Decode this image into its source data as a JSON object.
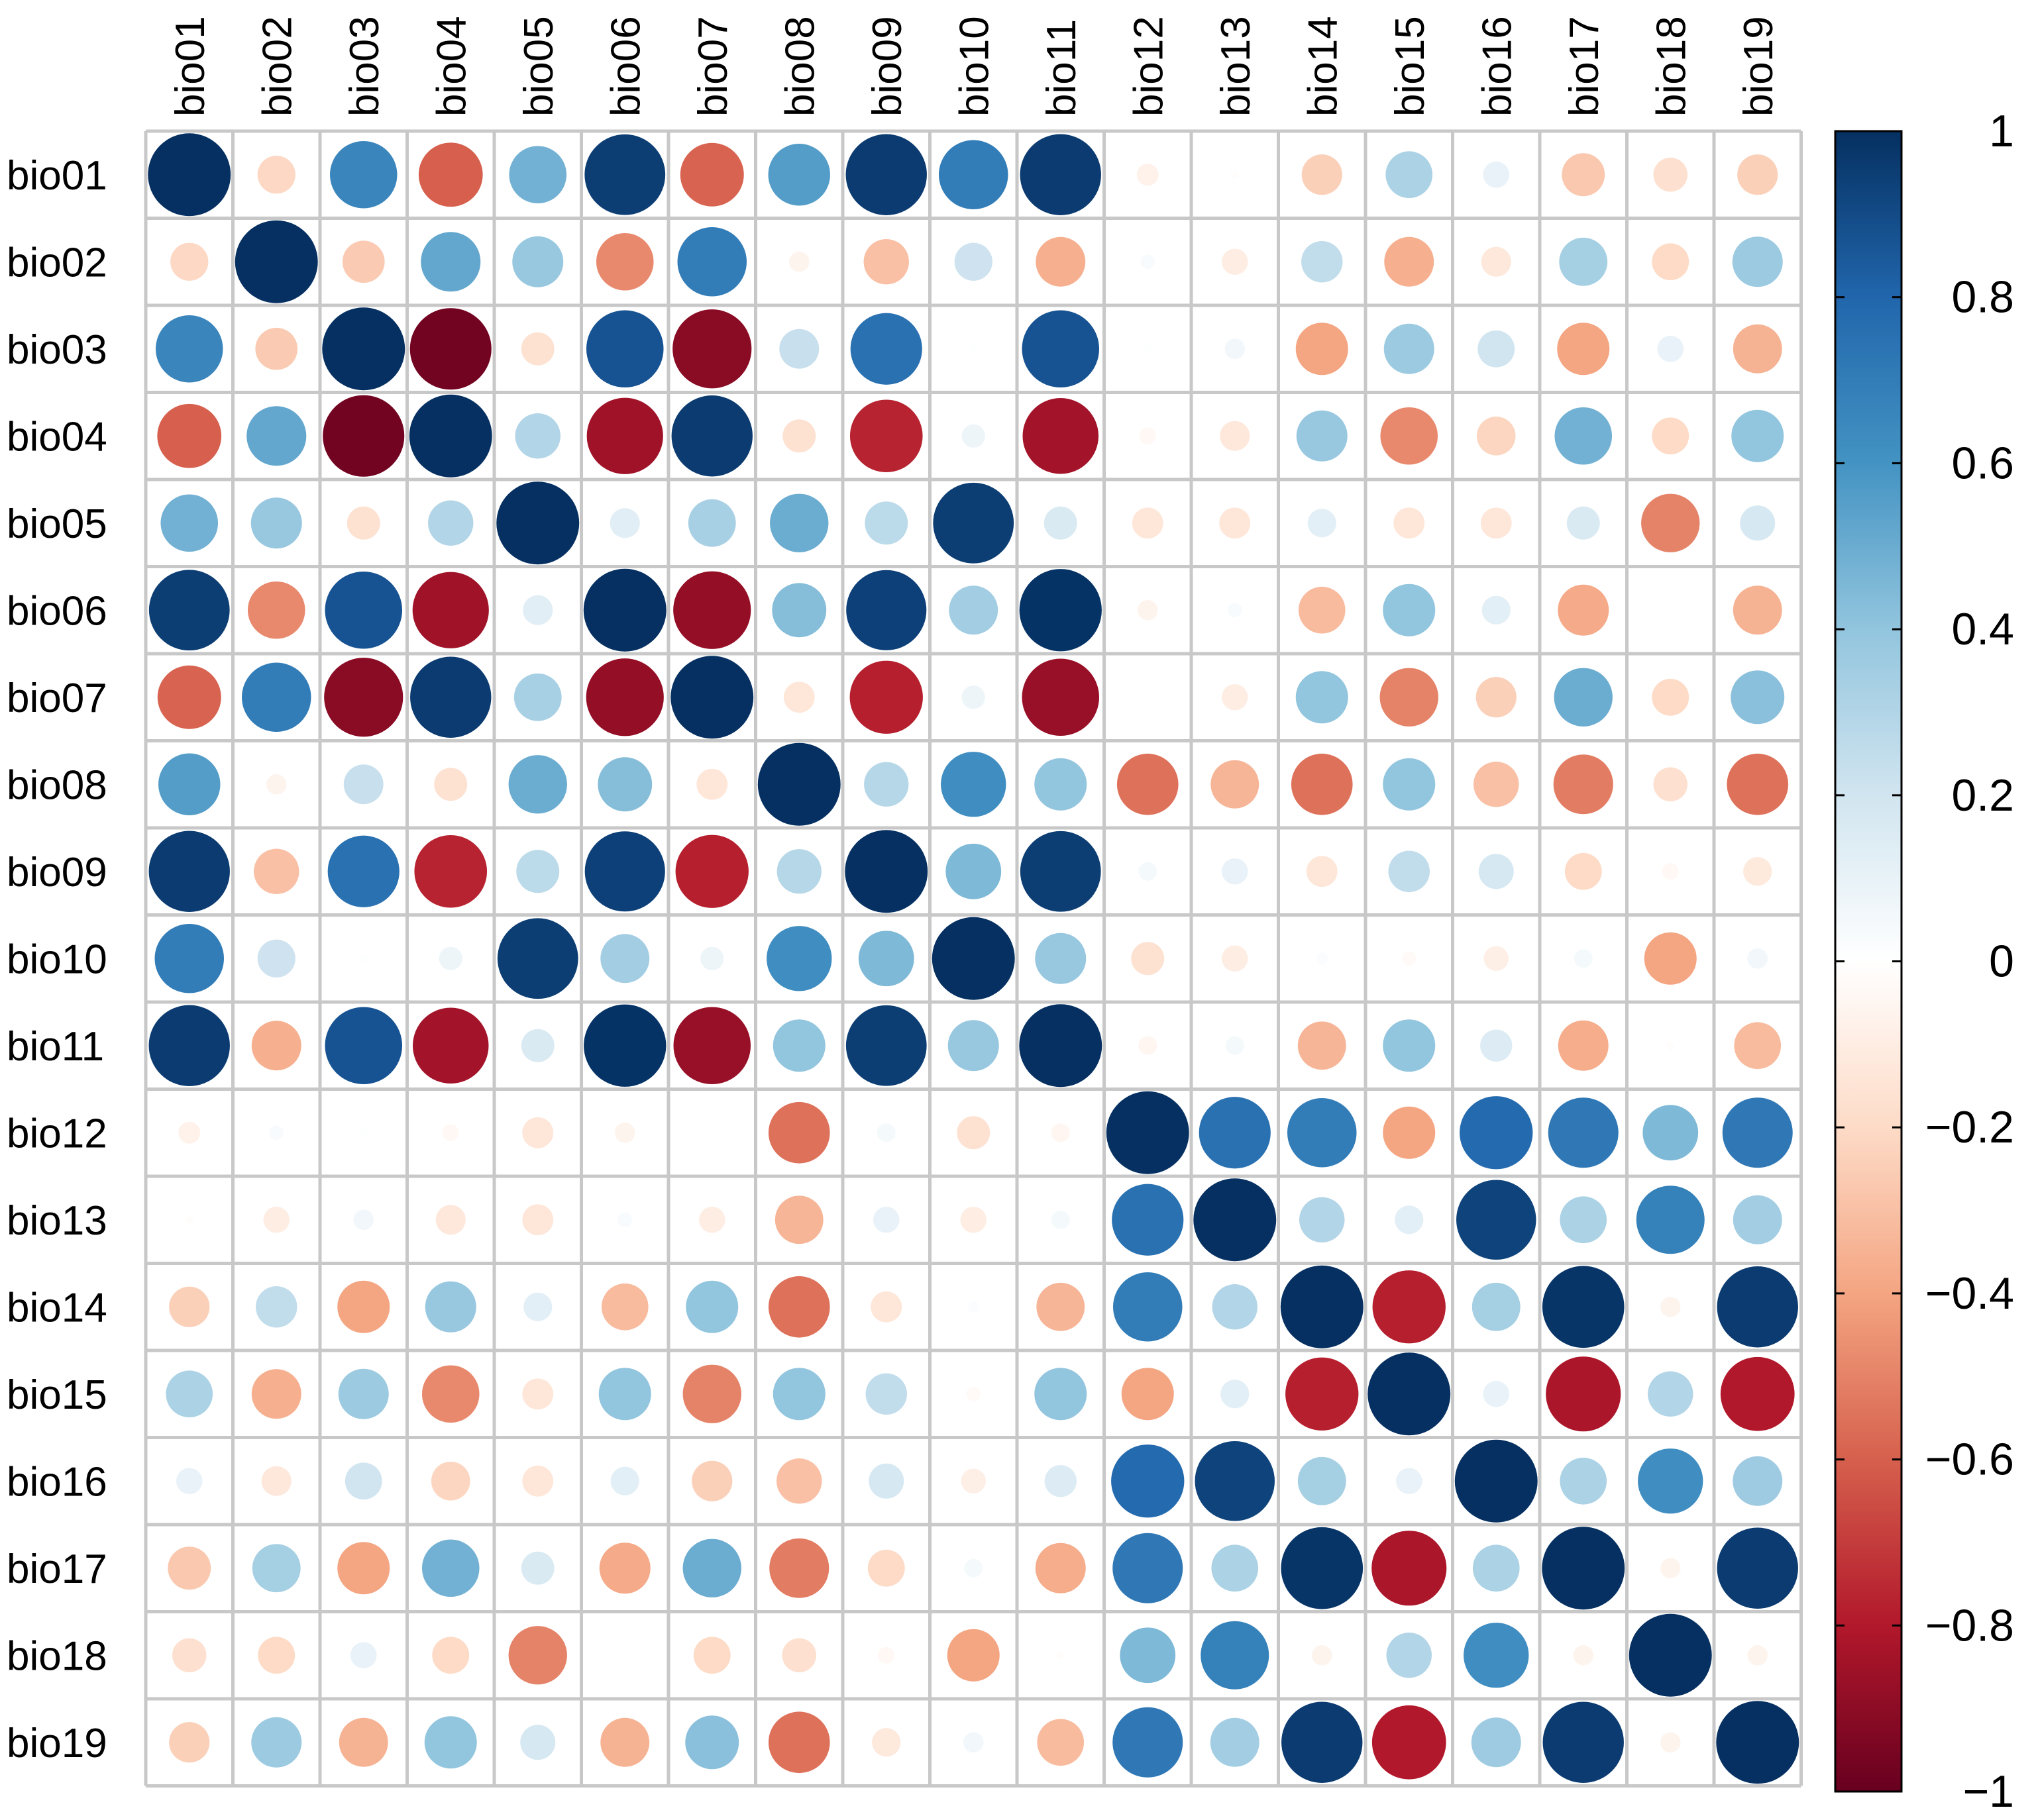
{
  "chart_data": {
    "type": "heatmap",
    "style": "corrplot-circle",
    "variables": [
      "bio01",
      "bio02",
      "bio03",
      "bio04",
      "bio05",
      "bio06",
      "bio07",
      "bio08",
      "bio09",
      "bio10",
      "bio11",
      "bio12",
      "bio13",
      "bio14",
      "bio15",
      "bio16",
      "bio17",
      "bio18",
      "bio19"
    ],
    "matrix": [
      [
        1.0,
        -0.21,
        0.66,
        -0.6,
        0.48,
        0.95,
        -0.59,
        0.56,
        0.96,
        0.7,
        0.96,
        -0.07,
        -0.01,
        -0.24,
        0.32,
        0.1,
        -0.27,
        -0.17,
        -0.24
      ],
      [
        -0.21,
        1.0,
        -0.26,
        0.52,
        0.38,
        -0.48,
        0.7,
        -0.06,
        -0.3,
        0.21,
        -0.36,
        0.03,
        -0.1,
        0.25,
        -0.36,
        -0.13,
        0.34,
        -0.2,
        0.37
      ],
      [
        0.66,
        -0.26,
        1.0,
        -0.97,
        -0.16,
        0.87,
        -0.91,
        0.23,
        0.75,
        0.01,
        0.87,
        0.01,
        0.06,
        -0.4,
        0.37,
        0.2,
        -0.4,
        0.1,
        -0.35
      ],
      [
        -0.6,
        0.52,
        -0.97,
        1.0,
        0.3,
        -0.85,
        0.96,
        -0.16,
        -0.77,
        0.08,
        -0.84,
        -0.04,
        -0.13,
        0.38,
        -0.48,
        -0.22,
        0.48,
        -0.2,
        0.4
      ],
      [
        0.48,
        0.38,
        -0.16,
        0.3,
        1.0,
        0.13,
        0.33,
        0.5,
        0.27,
        0.95,
        0.16,
        -0.14,
        -0.14,
        0.12,
        -0.14,
        -0.14,
        0.16,
        -0.5,
        0.18
      ],
      [
        0.95,
        -0.48,
        0.87,
        -0.85,
        0.13,
        1.0,
        -0.88,
        0.43,
        0.94,
        0.35,
        0.99,
        -0.06,
        0.03,
        -0.32,
        0.4,
        0.12,
        -0.38,
        0.0,
        -0.35
      ],
      [
        -0.59,
        0.7,
        -0.91,
        0.96,
        0.33,
        -0.88,
        1.0,
        -0.14,
        -0.78,
        0.08,
        -0.87,
        0.0,
        -0.1,
        0.4,
        -0.5,
        -0.24,
        0.5,
        -0.2,
        0.42
      ],
      [
        0.56,
        -0.06,
        0.23,
        -0.16,
        0.5,
        0.43,
        -0.14,
        1.0,
        0.29,
        0.62,
        0.4,
        -0.55,
        -0.34,
        -0.55,
        0.4,
        -0.3,
        -0.52,
        -0.17,
        -0.55
      ],
      [
        0.96,
        -0.3,
        0.75,
        -0.77,
        0.27,
        0.94,
        -0.78,
        0.29,
        1.0,
        0.45,
        0.95,
        0.05,
        0.1,
        -0.14,
        0.25,
        0.18,
        -0.2,
        -0.04,
        -0.12
      ],
      [
        0.7,
        0.21,
        0.01,
        0.08,
        0.95,
        0.35,
        0.08,
        0.62,
        0.45,
        1.0,
        0.38,
        -0.16,
        -0.1,
        0.02,
        -0.03,
        -0.09,
        0.05,
        -0.4,
        0.06
      ],
      [
        0.96,
        -0.36,
        0.87,
        -0.84,
        0.16,
        0.99,
        -0.87,
        0.4,
        0.95,
        0.38,
        1.0,
        -0.05,
        0.05,
        -0.34,
        0.4,
        0.15,
        -0.37,
        -0.01,
        -0.32
      ],
      [
        -0.07,
        0.03,
        0.01,
        -0.04,
        -0.14,
        -0.06,
        0.0,
        -0.55,
        0.05,
        -0.16,
        -0.05,
        1.0,
        0.75,
        0.7,
        -0.4,
        0.78,
        0.72,
        0.45,
        0.72
      ],
      [
        -0.01,
        -0.1,
        0.06,
        -0.13,
        -0.14,
        0.03,
        -0.1,
        -0.34,
        0.1,
        -0.1,
        0.05,
        0.75,
        1.0,
        0.3,
        0.12,
        0.93,
        0.32,
        0.68,
        0.35
      ],
      [
        -0.24,
        0.25,
        -0.4,
        0.38,
        0.12,
        -0.32,
        0.4,
        -0.55,
        -0.14,
        0.02,
        -0.34,
        0.7,
        0.3,
        1.0,
        -0.78,
        0.34,
        0.98,
        -0.06,
        0.96
      ],
      [
        0.32,
        -0.36,
        0.37,
        -0.48,
        -0.14,
        0.4,
        -0.5,
        0.4,
        0.25,
        -0.03,
        0.4,
        -0.4,
        0.12,
        -0.78,
        1.0,
        0.1,
        -0.82,
        0.3,
        -0.8
      ],
      [
        0.1,
        -0.13,
        0.2,
        -0.22,
        -0.14,
        0.12,
        -0.24,
        -0.3,
        0.18,
        -0.09,
        0.15,
        0.78,
        0.93,
        0.34,
        0.1,
        1.0,
        0.32,
        0.62,
        0.36
      ],
      [
        -0.27,
        0.34,
        -0.4,
        0.48,
        0.16,
        -0.38,
        0.5,
        -0.52,
        -0.2,
        0.05,
        -0.37,
        0.72,
        0.32,
        0.98,
        -0.82,
        0.32,
        1.0,
        -0.06,
        0.96
      ],
      [
        -0.17,
        -0.2,
        0.1,
        -0.2,
        -0.5,
        0.0,
        -0.2,
        -0.17,
        -0.04,
        -0.4,
        -0.01,
        0.45,
        0.68,
        -0.06,
        0.3,
        0.62,
        -0.06,
        1.0,
        -0.06
      ],
      [
        -0.24,
        0.37,
        -0.35,
        0.4,
        0.18,
        -0.35,
        0.42,
        -0.55,
        -0.12,
        0.06,
        -0.32,
        0.72,
        0.35,
        0.96,
        -0.8,
        0.36,
        0.96,
        -0.06,
        1.0
      ]
    ],
    "colorbar": {
      "range": [
        -1,
        1
      ],
      "tick_labels": [
        "1",
        "0.8",
        "0.6",
        "0.4",
        "0.2",
        "0",
        "−0.2",
        "−0.4",
        "−0.6",
        "−0.8",
        "−1"
      ],
      "tick_values": [
        1,
        0.8,
        0.6,
        0.4,
        0.2,
        0,
        -0.2,
        -0.4,
        -0.6,
        -0.8,
        -1
      ],
      "colors": [
        "#67001F",
        "#B2182B",
        "#D6604D",
        "#F4A582",
        "#FDDBC7",
        "#FFFFFF",
        "#D1E5F0",
        "#92C5DE",
        "#4393C3",
        "#2166AC",
        "#053061"
      ]
    },
    "title": "",
    "xlabel": "",
    "ylabel": "",
    "legend": "right"
  }
}
